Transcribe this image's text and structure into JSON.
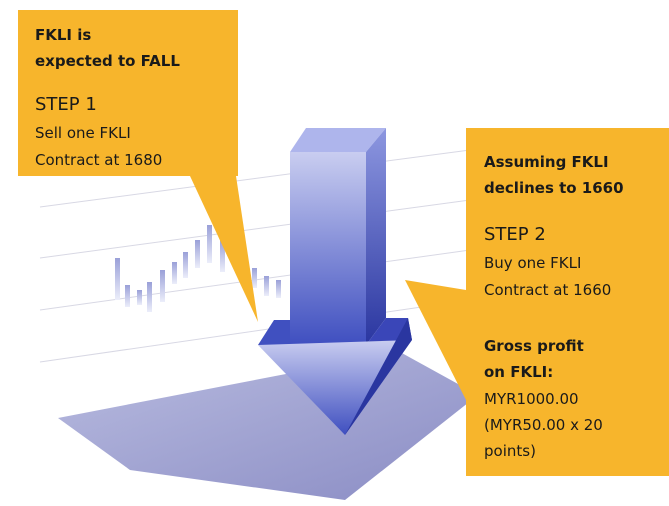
{
  "callouts": [
    {
      "heading": [
        "FKLI is",
        "expected to FALL"
      ],
      "step": "STEP 1",
      "action": [
        "Sell one FKLI",
        "Contract at 1680"
      ]
    },
    {
      "heading": [
        "Assuming FKLI",
        "declines to 1660"
      ],
      "step": "STEP 2",
      "action": [
        "Buy one FKLI",
        "Contract at 1660"
      ],
      "result_heading": [
        "Gross profit",
        "on FKLI:"
      ],
      "result": [
        "MYR1000.00",
        "(MYR50.00 x 20",
        "points)"
      ]
    }
  ]
}
